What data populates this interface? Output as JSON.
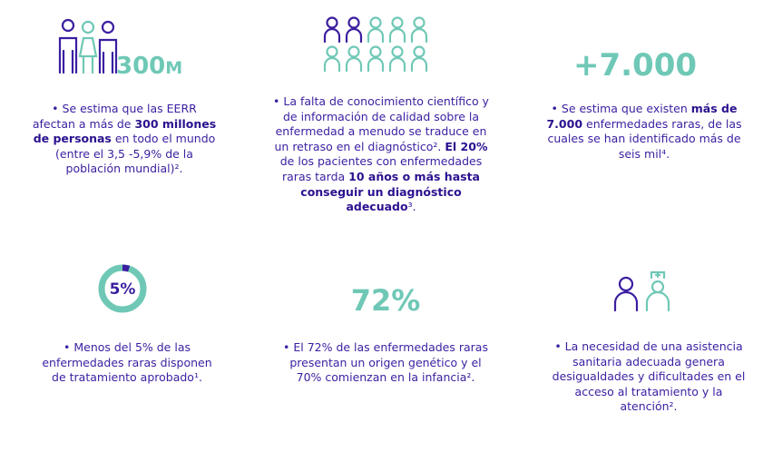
{
  "cells": [
    {
      "headline": "300M",
      "text": [
        {
          "t": "• Se estima que las EERR afectan a más de "
        },
        {
          "t": "300 millones de personas",
          "bold": true
        },
        {
          "t": " en todo el mundo (entre el 3,5 -5,9% de la población mundial)²."
        }
      ]
    },
    {
      "text": [
        {
          "t": "• La falta de conocimiento científico y de información de calidad sobre la enfermedad a menudo se traduce en un retraso en el diagnóstico².  "
        },
        {
          "t": "El 20%",
          "bold": true
        },
        {
          "t": " de los pacientes con enfermedades raras tarda "
        },
        {
          "t": "10 años o más hasta conseguir un diagnóstico adecuado",
          "bold": true
        },
        {
          "t": "³."
        }
      ]
    },
    {
      "headline": "+7.000",
      "text": [
        {
          "t": "• Se estima que existen "
        },
        {
          "t": "más de 7.000",
          "bold": true
        },
        {
          "t": " enfermedades raras, de las cuales se han identificado más de seis mil⁴."
        }
      ]
    },
    {
      "donut": {
        "label": "5%",
        "value": 5
      },
      "text": [
        {
          "t": "• Menos del 5% de las enfermedades raras disponen de tratamiento aprobado¹."
        }
      ]
    },
    {
      "headline": "72%",
      "text": [
        {
          "t": "• El 72% de las enfermedades raras presentan un origen genético y el 70% comienzan en la infancia²."
        }
      ]
    },
    {
      "text": [
        {
          "t": "• La necesidad de una asistencia sanitaria adecuada genera desigualdades y dificultades en el acceso al tratamiento y la atención²."
        }
      ]
    }
  ]
}
